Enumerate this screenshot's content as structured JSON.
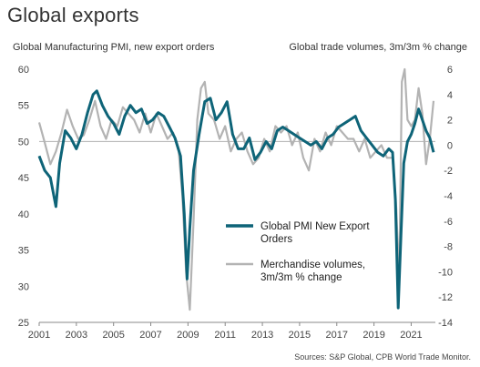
{
  "title": "Global exports",
  "source": "Sources: S&P Global, CPB World Trade Monitor.",
  "colors": {
    "pmi": "#0e6478",
    "trade": "#b3b3b3",
    "zero_line": "#b0b0b0",
    "axis": "#888888"
  },
  "chart_data": {
    "type": "line",
    "title": "Global exports",
    "left_axis": {
      "label": "Global Manufacturing PMI, new export orders",
      "range": [
        25,
        60
      ],
      "ticks": [
        25,
        30,
        35,
        40,
        45,
        50,
        55,
        60
      ],
      "tick_labels": [
        "25",
        "30",
        "35",
        "40",
        "45",
        "50",
        "55",
        "60"
      ]
    },
    "right_axis": {
      "label": "Global trade volumes, 3m/3m % change",
      "range": [
        -14,
        6
      ],
      "ticks": [
        -14,
        -12,
        -10,
        -8,
        -6,
        -4,
        -2,
        0,
        2,
        4,
        6
      ],
      "tick_labels": [
        "-14",
        "-12",
        "-10",
        "-8",
        "-6",
        "-4",
        "-2",
        "0",
        "2",
        "4",
        "6"
      ]
    },
    "x_axis": {
      "range": [
        2001,
        2022.3
      ],
      "ticks": [
        2001,
        2003,
        2005,
        2007,
        2009,
        2011,
        2013,
        2015,
        2017,
        2019,
        2021
      ],
      "tick_labels": [
        "2001",
        "2003",
        "2005",
        "2007",
        "2009",
        "2011",
        "2013",
        "2015",
        "2017",
        "2019",
        "2021"
      ]
    },
    "legend": {
      "placement": "center-right"
    },
    "series": [
      {
        "name": "Global PMI New Export Orders",
        "legend_lines": [
          "Global PMI New Export",
          "Orders"
        ],
        "axis": "left",
        "x": [
          2001.0,
          2001.3,
          2001.6,
          2001.9,
          2002.1,
          2002.4,
          2002.7,
          2003.0,
          2003.3,
          2003.6,
          2003.9,
          2004.1,
          2004.4,
          2004.7,
          2005.0,
          2005.3,
          2005.6,
          2005.9,
          2006.2,
          2006.5,
          2006.8,
          2007.1,
          2007.4,
          2007.7,
          2008.0,
          2008.3,
          2008.6,
          2008.8,
          2008.95,
          2009.1,
          2009.3,
          2009.6,
          2009.9,
          2010.2,
          2010.5,
          2010.8,
          2011.1,
          2011.4,
          2011.7,
          2012.0,
          2012.3,
          2012.6,
          2012.9,
          2013.2,
          2013.5,
          2013.8,
          2014.1,
          2014.4,
          2014.7,
          2015.0,
          2015.3,
          2015.6,
          2015.9,
          2016.2,
          2016.5,
          2016.8,
          2017.1,
          2017.4,
          2017.7,
          2018.0,
          2018.3,
          2018.6,
          2018.9,
          2019.2,
          2019.5,
          2019.8,
          2020.0,
          2020.15,
          2020.3,
          2020.45,
          2020.6,
          2020.8,
          2021.0,
          2021.2,
          2021.4,
          2021.6,
          2021.8,
          2022.0,
          2022.2
        ],
        "values": [
          48.0,
          46.0,
          45.0,
          41.0,
          47.0,
          51.5,
          50.5,
          49.0,
          51.0,
          54.0,
          56.5,
          57.0,
          55.0,
          53.5,
          52.5,
          51.0,
          53.5,
          55.0,
          54.0,
          54.5,
          52.5,
          53.0,
          54.0,
          53.5,
          52.0,
          50.5,
          48.0,
          40.0,
          31.0,
          38.0,
          46.0,
          51.0,
          55.5,
          56.0,
          53.0,
          54.0,
          55.5,
          51.0,
          49.0,
          49.0,
          50.5,
          47.5,
          48.5,
          50.0,
          49.0,
          51.5,
          52.0,
          51.5,
          51.0,
          50.5,
          50.0,
          49.5,
          50.0,
          49.0,
          50.5,
          51.0,
          52.0,
          52.5,
          53.0,
          53.5,
          51.5,
          50.5,
          49.5,
          48.5,
          48.0,
          49.0,
          48.5,
          42.0,
          27.0,
          37.0,
          47.0,
          50.0,
          51.0,
          52.5,
          54.5,
          53.0,
          51.5,
          50.5,
          48.5
        ]
      },
      {
        "name": "Merchandise volumes, 3m/3m % change",
        "legend_lines": [
          "Merchandise volumes,",
          "3m/3m % change"
        ],
        "axis": "right",
        "x": [
          2001.0,
          2001.3,
          2001.6,
          2001.9,
          2002.2,
          2002.5,
          2002.8,
          2003.1,
          2003.4,
          2003.7,
          2004.0,
          2004.3,
          2004.6,
          2004.9,
          2005.2,
          2005.5,
          2005.8,
          2006.1,
          2006.4,
          2006.7,
          2007.0,
          2007.3,
          2007.6,
          2007.9,
          2008.2,
          2008.5,
          2008.7,
          2008.9,
          2009.1,
          2009.3,
          2009.5,
          2009.7,
          2009.9,
          2010.1,
          2010.4,
          2010.7,
          2011.0,
          2011.3,
          2011.6,
          2011.9,
          2012.2,
          2012.5,
          2012.8,
          2013.1,
          2013.4,
          2013.7,
          2014.0,
          2014.3,
          2014.6,
          2014.9,
          2015.2,
          2015.5,
          2015.8,
          2016.1,
          2016.4,
          2016.7,
          2017.0,
          2017.3,
          2017.6,
          2017.9,
          2018.2,
          2018.5,
          2018.8,
          2019.1,
          2019.4,
          2019.7,
          2020.0,
          2020.2,
          2020.35,
          2020.5,
          2020.65,
          2020.8,
          2021.0,
          2021.2,
          2021.4,
          2021.6,
          2021.8,
          2022.0,
          2022.2
        ],
        "values": [
          1.8,
          0.2,
          -1.5,
          -0.5,
          1.0,
          2.8,
          1.5,
          0.5,
          0.8,
          2.0,
          3.5,
          1.5,
          0.5,
          2.0,
          1.5,
          3.0,
          2.5,
          2.0,
          1.0,
          2.5,
          1.0,
          2.5,
          1.5,
          0.5,
          1.0,
          -0.5,
          -4.0,
          -10.0,
          -13.0,
          -6.0,
          2.0,
          4.5,
          5.0,
          2.5,
          2.0,
          0.5,
          1.5,
          -0.5,
          0.5,
          1.0,
          -0.5,
          -1.5,
          -1.0,
          0.5,
          -0.5,
          1.5,
          1.0,
          1.5,
          0.0,
          1.0,
          -1.0,
          -2.0,
          0.5,
          -0.5,
          1.0,
          0.0,
          1.5,
          1.0,
          0.5,
          0.5,
          -0.5,
          0.5,
          -1.0,
          -0.5,
          0.0,
          -1.0,
          -1.0,
          -5.0,
          -11.0,
          5.0,
          6.0,
          2.0,
          1.5,
          2.0,
          4.5,
          2.5,
          -1.5,
          0.5,
          3.5
        ]
      }
    ]
  }
}
